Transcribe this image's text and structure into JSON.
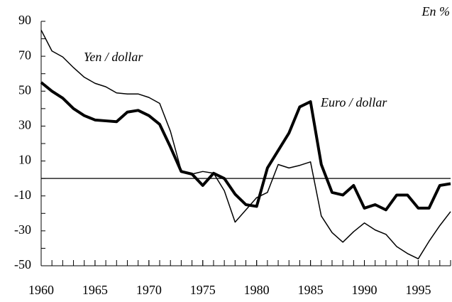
{
  "chart_data": {
    "type": "line",
    "unit_label": "En %",
    "x": [
      1960,
      1961,
      1962,
      1963,
      1964,
      1965,
      1966,
      1967,
      1968,
      1969,
      1970,
      1971,
      1972,
      1973,
      1974,
      1975,
      1976,
      1977,
      1978,
      1979,
      1980,
      1981,
      1982,
      1983,
      1984,
      1985,
      1986,
      1987,
      1988,
      1989,
      1990,
      1991,
      1992,
      1993,
      1994,
      1995,
      1996,
      1997,
      1998
    ],
    "series": [
      {
        "name": "Yen / dollar",
        "color": "#000000",
        "width": 1.5,
        "values": [
          85,
          73,
          69.6,
          63.5,
          58,
          54.5,
          52.5,
          49,
          48.4,
          48.4,
          46.4,
          43,
          27,
          4.5,
          2.5,
          4,
          3,
          -7,
          -25,
          -18,
          -11,
          -8,
          8,
          6,
          7.5,
          9.5,
          -21.5,
          -31,
          -36.5,
          -30.5,
          -25.5,
          -29.5,
          -32,
          -39,
          -43,
          -46,
          -36,
          -27,
          -19
        ]
      },
      {
        "name": "Euro / dollar",
        "color": "#000000",
        "width": 4,
        "values": [
          55,
          50,
          46,
          40,
          36,
          33.5,
          33,
          32.5,
          38,
          39,
          36,
          31,
          18,
          4,
          2.5,
          -4,
          3,
          0,
          -9,
          -15,
          -16,
          6,
          16,
          26,
          41,
          44,
          8,
          -8,
          -9.5,
          -4,
          -17,
          -15,
          -18,
          -9.5,
          -9.5,
          -17,
          -17,
          -4,
          -3
        ]
      }
    ],
    "reference_line": 0,
    "xlim": [
      1960,
      1998
    ],
    "xticks": [
      1960,
      1965,
      1970,
      1975,
      1980,
      1985,
      1990,
      1995
    ],
    "ylim": [
      -50,
      90
    ],
    "yticks": [
      90,
      70,
      50,
      30,
      10,
      -10,
      -30,
      -50
    ]
  }
}
